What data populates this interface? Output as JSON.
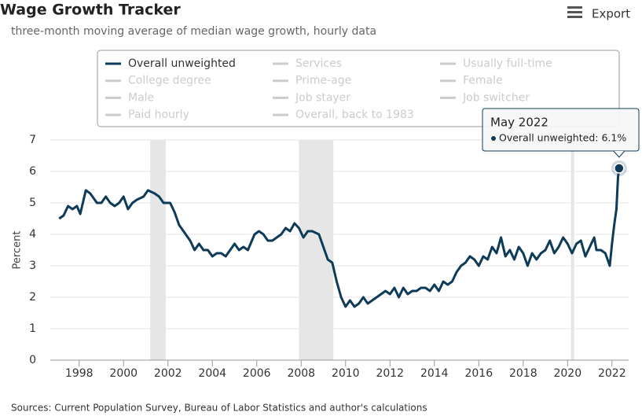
{
  "chart_data": {
    "type": "line",
    "title": "Wage Growth Tracker",
    "subtitle": "three-month moving average of median wage growth, hourly data",
    "export_label": "Export",
    "y_label": "Percent",
    "source": "Sources: Current Population Survey, Bureau of Labor Statistics and author's calculations",
    "xlim": [
      1996.7,
      2022.75
    ],
    "xticks": [
      1998,
      2000,
      2002,
      2004,
      2006,
      2008,
      2010,
      2012,
      2014,
      2016,
      2018,
      2020,
      2022
    ],
    "ylim": [
      0,
      7
    ],
    "yticks": [
      0,
      1,
      2,
      3,
      4,
      5,
      6,
      7
    ],
    "grid": true,
    "recessions": [
      [
        2001.2,
        2001.9
      ],
      [
        2007.9,
        2009.45
      ],
      [
        2020.15,
        2020.3
      ]
    ],
    "x": [
      1997.1,
      1997.3,
      1997.5,
      1997.7,
      1997.9,
      1998.05,
      1998.3,
      1998.5,
      1998.8,
      1999.0,
      1999.2,
      1999.4,
      1999.6,
      1999.8,
      2000.0,
      2000.2,
      2000.4,
      2000.6,
      2000.9,
      2001.1,
      2001.4,
      2001.6,
      2001.8,
      2002.1,
      2002.3,
      2002.5,
      2002.8,
      2003.0,
      2003.2,
      2003.4,
      2003.6,
      2003.8,
      2004.0,
      2004.2,
      2004.4,
      2004.6,
      2004.8,
      2005.0,
      2005.2,
      2005.4,
      2005.6,
      2005.9,
      2006.1,
      2006.3,
      2006.5,
      2006.7,
      2006.9,
      2007.1,
      2007.3,
      2007.5,
      2007.7,
      2007.9,
      2008.1,
      2008.3,
      2008.5,
      2008.8,
      2009.0,
      2009.2,
      2009.4,
      2009.6,
      2009.8,
      2010.0,
      2010.2,
      2010.4,
      2010.6,
      2010.8,
      2011.0,
      2011.2,
      2011.4,
      2011.6,
      2011.8,
      2012.0,
      2012.2,
      2012.4,
      2012.6,
      2012.8,
      2013.0,
      2013.2,
      2013.4,
      2013.6,
      2013.8,
      2014.0,
      2014.2,
      2014.4,
      2014.6,
      2014.8,
      2015.0,
      2015.2,
      2015.4,
      2015.6,
      2015.8,
      2016.0,
      2016.2,
      2016.4,
      2016.6,
      2016.8,
      2017.0,
      2017.2,
      2017.4,
      2017.6,
      2017.8,
      2018.0,
      2018.2,
      2018.4,
      2018.6,
      2018.8,
      2019.0,
      2019.2,
      2019.4,
      2019.6,
      2019.8,
      2020.0,
      2020.2,
      2020.4,
      2020.6,
      2020.8,
      2021.0,
      2021.2,
      2021.3,
      2021.5,
      2021.7,
      2021.9,
      2022.0,
      2022.1,
      2022.2,
      2022.27,
      2022.32
    ],
    "series": [
      {
        "name": "Overall unweighted",
        "color": "#0d3b58",
        "visible": true,
        "values": [
          4.5,
          4.6,
          4.9,
          4.8,
          4.9,
          4.65,
          5.4,
          5.3,
          5.0,
          5.0,
          5.2,
          5.0,
          4.9,
          5.0,
          5.2,
          4.8,
          5.0,
          5.1,
          5.2,
          5.4,
          5.3,
          5.2,
          5.0,
          5.0,
          4.7,
          4.3,
          4.0,
          3.8,
          3.5,
          3.7,
          3.5,
          3.5,
          3.3,
          3.4,
          3.4,
          3.3,
          3.5,
          3.7,
          3.5,
          3.6,
          3.5,
          4.0,
          4.1,
          4.0,
          3.8,
          3.8,
          3.9,
          4.0,
          4.2,
          4.1,
          4.35,
          4.2,
          3.9,
          4.1,
          4.1,
          4.0,
          3.6,
          3.2,
          3.1,
          2.5,
          2.0,
          1.7,
          1.9,
          1.7,
          1.8,
          2.0,
          1.8,
          1.9,
          2.0,
          2.1,
          2.2,
          2.1,
          2.3,
          2.0,
          2.3,
          2.1,
          2.2,
          2.2,
          2.3,
          2.3,
          2.2,
          2.4,
          2.2,
          2.5,
          2.4,
          2.5,
          2.8,
          3.0,
          3.1,
          3.3,
          3.2,
          3.0,
          3.3,
          3.2,
          3.6,
          3.4,
          3.9,
          3.3,
          3.5,
          3.2,
          3.6,
          3.4,
          3.0,
          3.4,
          3.2,
          3.4,
          3.5,
          3.8,
          3.4,
          3.6,
          3.9,
          3.7,
          3.4,
          3.7,
          3.8,
          3.3,
          3.6,
          3.9,
          3.5,
          3.5,
          3.4,
          3.0,
          3.7,
          4.3,
          4.8,
          5.8,
          6.1
        ]
      },
      {
        "name": "Services",
        "color": "#cccccc",
        "visible": false
      },
      {
        "name": "Usually full-time",
        "color": "#cccccc",
        "visible": false
      },
      {
        "name": "College degree",
        "color": "#cccccc",
        "visible": false
      },
      {
        "name": "Prime-age",
        "color": "#cccccc",
        "visible": false
      },
      {
        "name": "Female",
        "color": "#cccccc",
        "visible": false
      },
      {
        "name": "Male",
        "color": "#cccccc",
        "visible": false
      },
      {
        "name": "Job stayer",
        "color": "#cccccc",
        "visible": false
      },
      {
        "name": "Job switcher",
        "color": "#cccccc",
        "visible": false
      },
      {
        "name": "Paid hourly",
        "color": "#cccccc",
        "visible": false
      },
      {
        "name": "Overall, back to 1983",
        "color": "#cccccc",
        "visible": false
      }
    ],
    "tooltip": {
      "title": "May 2022",
      "text": "Overall unweighted: 6.1%"
    }
  }
}
